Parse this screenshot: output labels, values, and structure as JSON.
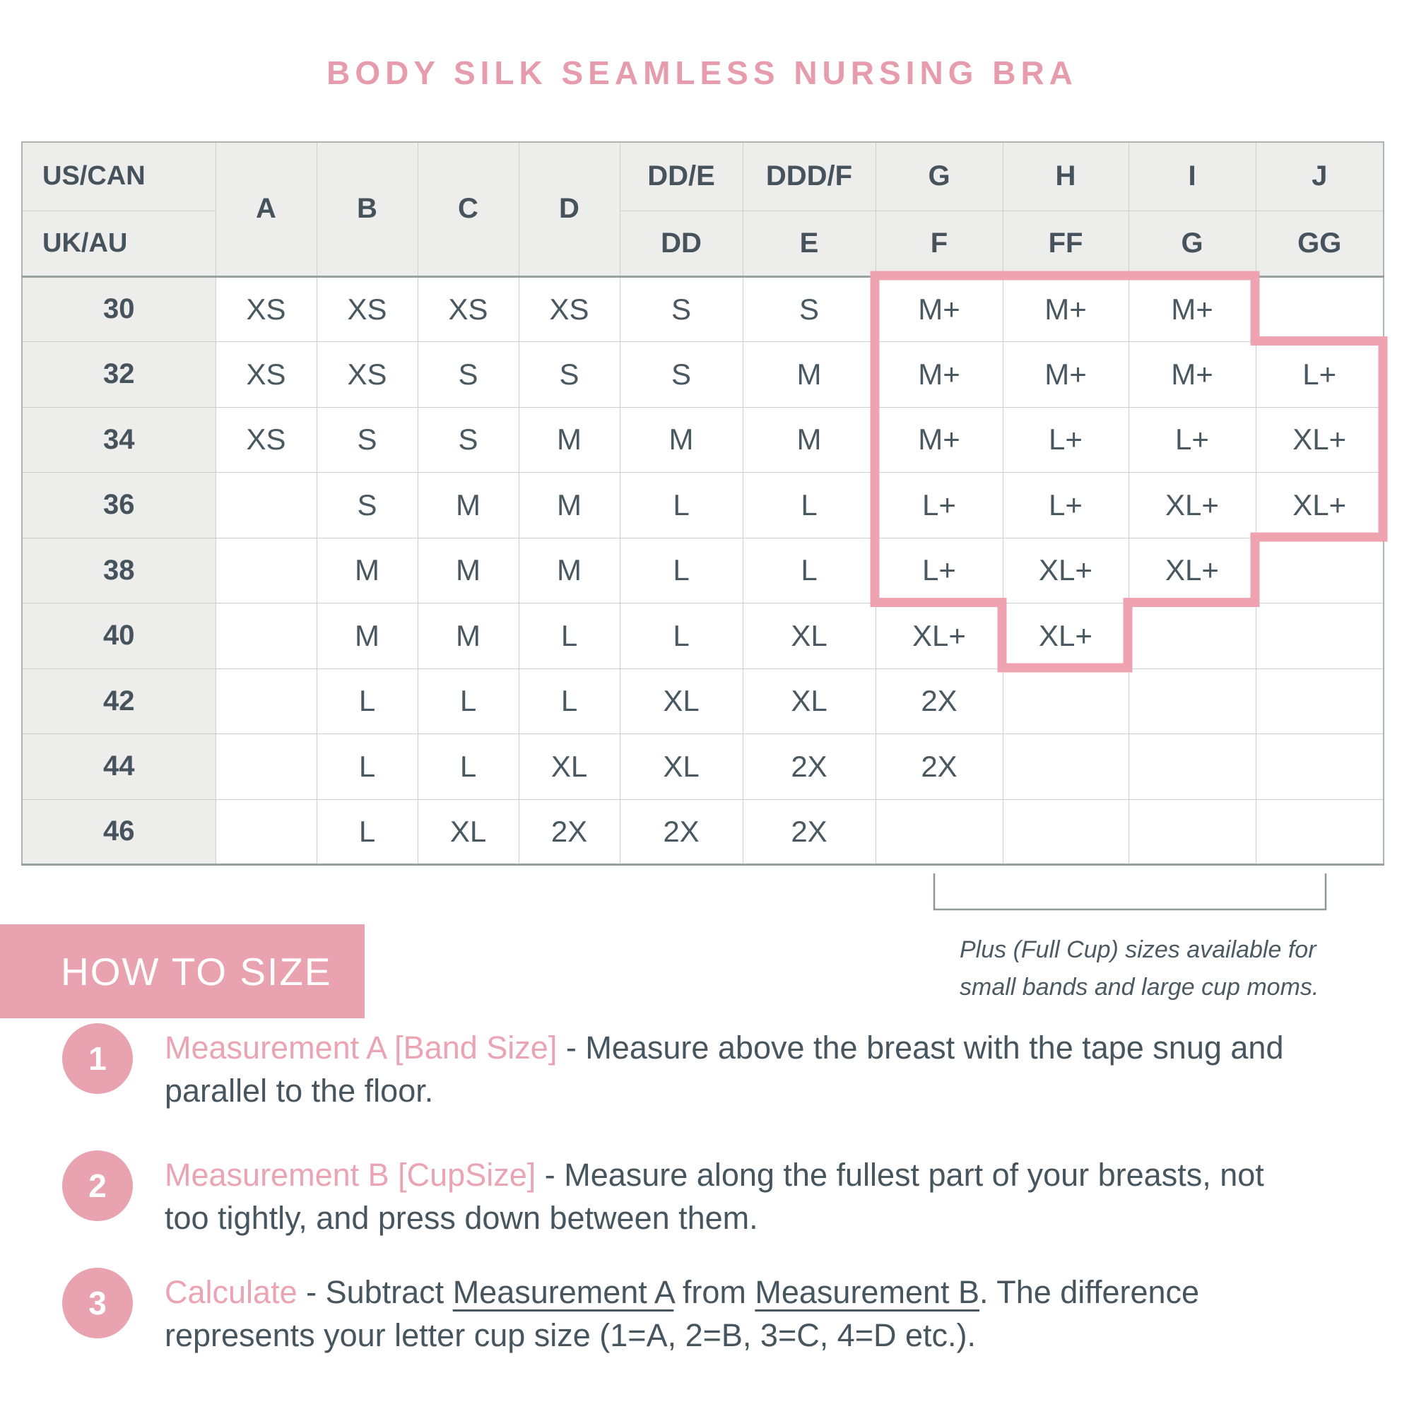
{
  "title": "BODY SILK SEAMLESS NURSING BRA",
  "colors": {
    "accent_pink": "#e9a2b0",
    "outline_pink": "#efa2b0",
    "title_pink": "#e69cac",
    "text_dark": "#47555f",
    "header_bg": "#ededeb",
    "grid_line": "#cdcdcb",
    "bracket_gray": "#8f9898"
  },
  "table": {
    "corner_row1": "US/CAN",
    "corner_row2": "UK/AU",
    "cup_headers_row1": [
      "A",
      "B",
      "C",
      "D",
      "DD/E",
      "DDD/F",
      "G",
      "H",
      "I",
      "J"
    ],
    "cup_headers_row2": [
      "DD",
      "E",
      "F",
      "FF",
      "G",
      "GG"
    ],
    "rows": [
      {
        "band": "30",
        "cells": [
          "XS",
          "XS",
          "XS",
          "XS",
          "S",
          "S",
          "M+",
          "M+",
          "M+",
          ""
        ]
      },
      {
        "band": "32",
        "cells": [
          "XS",
          "XS",
          "S",
          "S",
          "S",
          "M",
          "M+",
          "M+",
          "M+",
          "L+"
        ]
      },
      {
        "band": "34",
        "cells": [
          "XS",
          "S",
          "S",
          "M",
          "M",
          "M",
          "M+",
          "L+",
          "L+",
          "XL+"
        ]
      },
      {
        "band": "36",
        "cells": [
          "",
          "S",
          "M",
          "M",
          "L",
          "L",
          "L+",
          "L+",
          "XL+",
          "XL+"
        ]
      },
      {
        "band": "38",
        "cells": [
          "",
          "M",
          "M",
          "M",
          "L",
          "L",
          "L+",
          "XL+",
          "XL+",
          ""
        ]
      },
      {
        "band": "40",
        "cells": [
          "",
          "M",
          "M",
          "L",
          "L",
          "XL",
          "XL+",
          "XL+",
          "",
          ""
        ]
      },
      {
        "band": "42",
        "cells": [
          "",
          "L",
          "L",
          "L",
          "XL",
          "XL",
          "2X",
          "",
          "",
          ""
        ]
      },
      {
        "band": "44",
        "cells": [
          "",
          "L",
          "L",
          "XL",
          "XL",
          "2X",
          "2X",
          "",
          "",
          ""
        ]
      },
      {
        "band": "46",
        "cells": [
          "",
          "L",
          "XL",
          "2X",
          "2X",
          "2X",
          "",
          "",
          "",
          ""
        ]
      }
    ],
    "plus_note_line1": "Plus (Full Cup) sizes available for",
    "plus_note_line2": "small bands and large cup moms."
  },
  "how_to_size": {
    "banner": "HOW TO SIZE",
    "steps": [
      {
        "num": "1",
        "segments": [
          {
            "t": "Measurement A [Band Size]",
            "s": "accent"
          },
          {
            "t": " - Measure above the breast with the tape snug and",
            "s": ""
          },
          {
            "br": true
          },
          {
            "t": "parallel to the floor.",
            "s": ""
          }
        ]
      },
      {
        "num": "2",
        "segments": [
          {
            "t": "Measurement B [CupSize]",
            "s": "accent"
          },
          {
            "t": " - Measure along the fullest part of your breasts, not",
            "s": ""
          },
          {
            "br": true
          },
          {
            "t": "too tightly, and press down between them.",
            "s": ""
          }
        ]
      },
      {
        "num": "3",
        "segments": [
          {
            "t": "Calculate",
            "s": "accent"
          },
          {
            "t": " - Subtract ",
            "s": ""
          },
          {
            "t": "Measurement A",
            "s": "underline"
          },
          {
            "t": " from ",
            "s": ""
          },
          {
            "t": "Measurement B",
            "s": "underline"
          },
          {
            "t": ". The difference",
            "s": ""
          },
          {
            "br": true
          },
          {
            "t": "represents your letter cup size (1=A, 2=B, 3=C, 4=D etc.).",
            "s": ""
          }
        ]
      }
    ]
  }
}
